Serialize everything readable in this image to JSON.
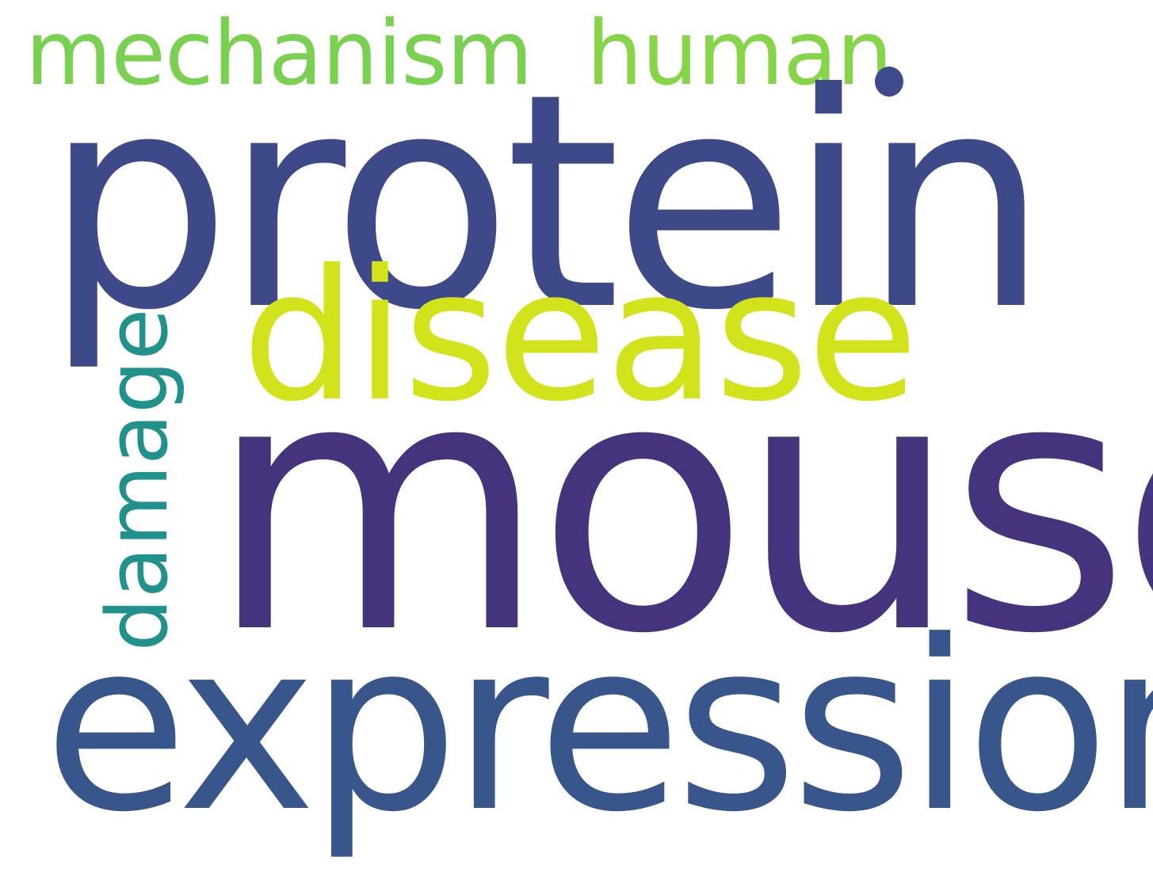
{
  "words": {
    "mechanism": {
      "text": "mechanism",
      "color": "#7ad151"
    },
    "human": {
      "text": "human",
      "color": "#86d549"
    },
    "dot": {
      "text": ".",
      "color": "#3e4a89"
    },
    "protein": {
      "text": "protein",
      "color": "#3e4989"
    },
    "disease": {
      "text": "disease",
      "color": "#d2e21b"
    },
    "damage": {
      "text": "damage",
      "color": "#21918c"
    },
    "mouse": {
      "text": "mouse",
      "color": "#46337e"
    },
    "expression": {
      "text": "expression",
      "color": "#39568c"
    }
  }
}
